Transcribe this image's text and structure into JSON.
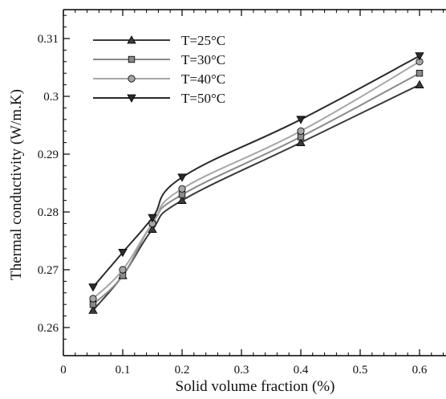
{
  "chart_data": {
    "type": "line",
    "xlabel": "Solid volume fraction (%)",
    "ylabel": "Thermal conductivity (W/m.K)",
    "xlim": [
      0,
      0.65
    ],
    "ylim": [
      0.258,
      0.315
    ],
    "xticks": [
      {
        "value": 0,
        "label": "0"
      },
      {
        "value": 0.1,
        "label": "0.1"
      },
      {
        "value": 0.2,
        "label": "0.2"
      },
      {
        "value": 0.3,
        "label": "0.3"
      },
      {
        "value": 0.4,
        "label": "0.4"
      },
      {
        "value": 0.5,
        "label": "0.5"
      },
      {
        "value": 0.6,
        "label": "0.6"
      }
    ],
    "yticks": [
      {
        "value": 0.26,
        "label": "0.26"
      },
      {
        "value": 0.27,
        "label": "0.27"
      },
      {
        "value": 0.28,
        "label": "0.28"
      },
      {
        "value": 0.29,
        "label": "0.29"
      },
      {
        "value": 0.3,
        "label": "0.3"
      },
      {
        "value": 0.31,
        "label": "0.31"
      }
    ],
    "x": [
      0.05,
      0.1,
      0.15,
      0.2,
      0.4,
      0.6
    ],
    "series": [
      {
        "name": "T=25°C",
        "values": [
          0.263,
          0.269,
          0.277,
          0.282,
          0.292,
          0.302
        ],
        "marker": "triangle-up",
        "color": "#3a3a3a"
      },
      {
        "name": "T=30°C",
        "values": [
          0.264,
          0.269,
          0.278,
          0.283,
          0.293,
          0.304
        ],
        "marker": "square",
        "color": "#8a8a8a"
      },
      {
        "name": "T=40°C",
        "values": [
          0.265,
          0.27,
          0.278,
          0.284,
          0.294,
          0.306
        ],
        "marker": "circle",
        "color": "#a6a6a6"
      },
      {
        "name": "T=50°C",
        "values": [
          0.267,
          0.273,
          0.279,
          0.286,
          0.296,
          0.307
        ],
        "marker": "triangle-down",
        "color": "#2a2a2a"
      }
    ],
    "legend_position": "top-left",
    "grid": false
  }
}
